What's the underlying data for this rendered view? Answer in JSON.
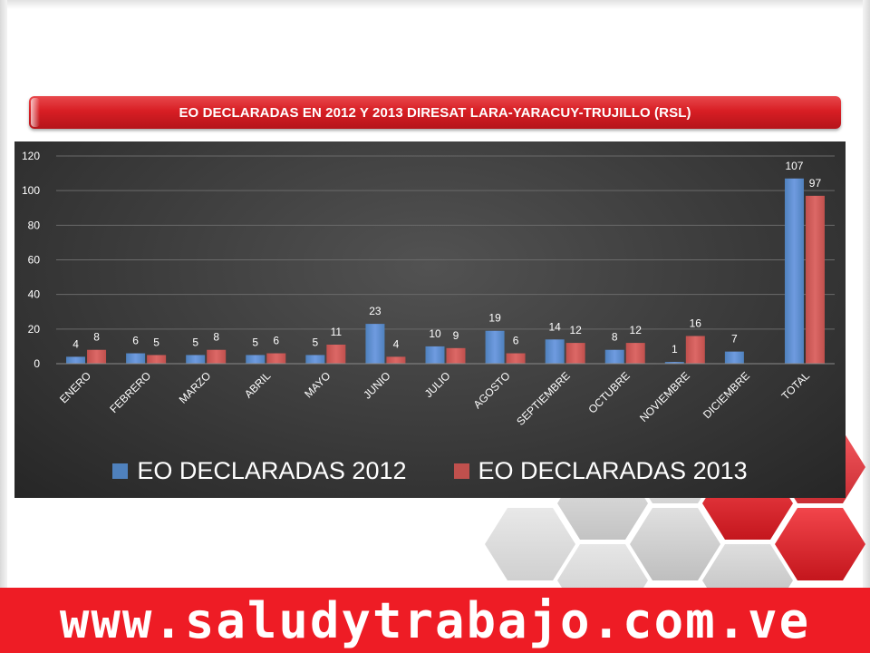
{
  "title": "EO DECLARADAS EN 2012 Y 2013 DIRESAT LARA-YARACUY-TRUJILLO (RSL)",
  "footer": {
    "url": "www.saludytrabajo.com.ve"
  },
  "colors": {
    "banner": "#d81e24",
    "footer": "#ee1c25",
    "series_2012": "#4f81bd",
    "series_2013": "#c0504d",
    "chart_background": "#3a3a3a"
  },
  "chart_data": {
    "type": "bar",
    "categories": [
      "ENERO",
      "FEBRERO",
      "MARZO",
      "ABRIL",
      "MAYO",
      "JUNIO",
      "JULIO",
      "AGOSTO",
      "SEPTIEMBRE",
      "OCTUBRE",
      "NOVIEMBRE",
      "DICIEMBRE",
      "TOTAL"
    ],
    "series": [
      {
        "name": "EO DECLARADAS 2012",
        "values": [
          4,
          6,
          5,
          5,
          5,
          23,
          10,
          19,
          14,
          8,
          1,
          7,
          107
        ]
      },
      {
        "name": "EO DECLARADAS 2013",
        "values": [
          8,
          5,
          8,
          6,
          11,
          4,
          9,
          6,
          12,
          12,
          16,
          null,
          97
        ]
      }
    ],
    "ylim": [
      0,
      120
    ],
    "yticks": [
      0,
      20,
      40,
      60,
      80,
      100,
      120
    ],
    "grid": true,
    "legend_position": "bottom"
  }
}
